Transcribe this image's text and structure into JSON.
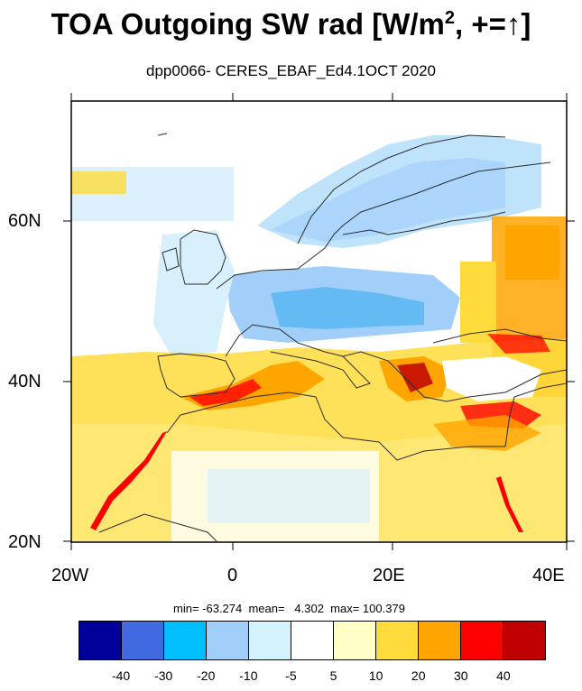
{
  "title_main": "TOA Outgoing SW rad [W/m",
  "title_sup": "2",
  "title_tail": ", +=↑]",
  "subtitle": "dpp0066- CERES_EBAF_Ed4.1OCT 2020",
  "map": {
    "lon_range": [
      -20,
      40
    ],
    "lat_range": [
      20,
      75
    ],
    "y_ticks": [
      {
        "label": "60N",
        "lat": 60
      },
      {
        "label": "40N",
        "lat": 40
      },
      {
        "label": "20N",
        "lat": 20
      }
    ],
    "x_ticks": [
      {
        "label": "20W",
        "lon": -20
      },
      {
        "label": "0",
        "lon": 0
      },
      {
        "label": "20E",
        "lon": 20
      },
      {
        "label": "40E",
        "lon": 40
      }
    ]
  },
  "stats": "min= -63.274  mean=   4.302  max= 100.379",
  "colorbar": {
    "colors": [
      "#00009a",
      "#4169e1",
      "#00bfff",
      "#a2cffa",
      "#d2f3fc",
      "#ffffff",
      "#ffffc8",
      "#ffdc3c",
      "#ffa500",
      "#ff0000",
      "#c00000"
    ],
    "labels": [
      "-40",
      "-30",
      "-20",
      "-10",
      "-5",
      "5",
      "10",
      "20",
      "30",
      "40"
    ]
  }
}
